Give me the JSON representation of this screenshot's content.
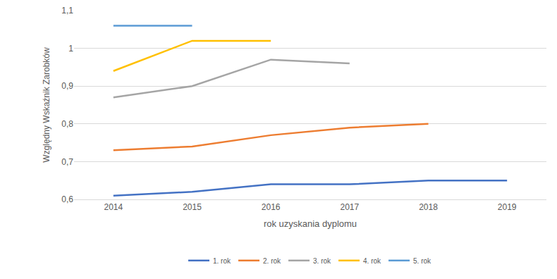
{
  "chart_data": {
    "type": "line",
    "x_label": "rok uzyskania dyplomu",
    "y_label": "Względny Wskaźnik Zarobków",
    "categories": [
      "2014",
      "2015",
      "2016",
      "2017",
      "2018",
      "2019"
    ],
    "series": [
      {
        "name": "1. rok",
        "color": "#4472c4",
        "values": [
          0.61,
          0.62,
          0.64,
          0.64,
          0.65,
          0.65
        ]
      },
      {
        "name": "2. rok",
        "color": "#ed7d31",
        "values": [
          0.73,
          0.74,
          0.77,
          0.79,
          0.8,
          null
        ]
      },
      {
        "name": "3. rok",
        "color": "#a5a5a5",
        "values": [
          0.87,
          0.9,
          0.97,
          0.96,
          null,
          null
        ]
      },
      {
        "name": "4. rok",
        "color": "#ffc000",
        "values": [
          0.94,
          1.02,
          1.02,
          null,
          null,
          null
        ]
      },
      {
        "name": "5. rok",
        "color": "#5b9bd5",
        "values": [
          1.06,
          1.06,
          null,
          null,
          null,
          null
        ]
      }
    ],
    "ylim": [
      0.6,
      1.1
    ],
    "yticks": [
      {
        "value": 0.6,
        "label": "0,6"
      },
      {
        "value": 0.7,
        "label": "0,7"
      },
      {
        "value": 0.8,
        "label": "0,8"
      },
      {
        "value": 0.9,
        "label": "0,9"
      },
      1,
      {
        "value": 1.1,
        "label": "1,1"
      }
    ],
    "grid": true,
    "legend": "bottom"
  }
}
